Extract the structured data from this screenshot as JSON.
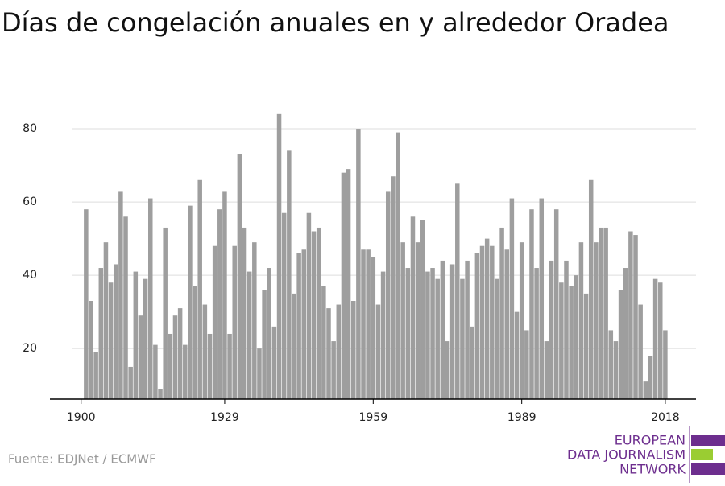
{
  "chart_data": {
    "type": "bar",
    "title": "Días de congelación anuales en y alrededor Oradea",
    "source": "Fuente: EDJNet / ECMWF",
    "logo": [
      "EUROPEAN",
      "DATA JOURNALISM",
      "NETWORK"
    ],
    "color": "#9e9e9e",
    "grid": true,
    "x": [
      1901,
      1902,
      1903,
      1904,
      1905,
      1906,
      1907,
      1908,
      1909,
      1910,
      1911,
      1912,
      1913,
      1914,
      1915,
      1916,
      1917,
      1918,
      1919,
      1920,
      1921,
      1922,
      1923,
      1924,
      1925,
      1926,
      1927,
      1928,
      1929,
      1930,
      1931,
      1932,
      1933,
      1934,
      1935,
      1936,
      1937,
      1938,
      1939,
      1940,
      1941,
      1942,
      1943,
      1944,
      1945,
      1946,
      1947,
      1948,
      1949,
      1950,
      1951,
      1952,
      1953,
      1954,
      1955,
      1956,
      1957,
      1958,
      1959,
      1960,
      1961,
      1962,
      1963,
      1964,
      1965,
      1966,
      1967,
      1968,
      1969,
      1970,
      1971,
      1972,
      1973,
      1974,
      1975,
      1976,
      1977,
      1978,
      1979,
      1980,
      1981,
      1982,
      1983,
      1984,
      1985,
      1986,
      1987,
      1988,
      1989,
      1990,
      1991,
      1992,
      1993,
      1994,
      1995,
      1996,
      1997,
      1998,
      1999,
      2000,
      2001,
      2002,
      2003,
      2004,
      2005,
      2006,
      2007,
      2008,
      2009,
      2010,
      2011,
      2012,
      2013,
      2014,
      2015,
      2016,
      2017,
      2018
    ],
    "values": [
      58,
      33,
      19,
      42,
      49,
      38,
      43,
      63,
      56,
      15,
      41,
      29,
      39,
      61,
      21,
      9,
      53,
      24,
      29,
      31,
      21,
      59,
      37,
      66,
      32,
      24,
      48,
      58,
      63,
      24,
      48,
      73,
      53,
      41,
      49,
      20,
      36,
      42,
      26,
      84,
      57,
      74,
      35,
      46,
      47,
      57,
      52,
      53,
      37,
      31,
      22,
      32,
      68,
      69,
      33,
      80,
      47,
      47,
      45,
      32,
      41,
      63,
      67,
      79,
      49,
      42,
      56,
      49,
      55,
      41,
      42,
      39,
      44,
      22,
      43,
      65,
      39,
      44,
      26,
      46,
      48,
      50,
      48,
      39,
      53,
      47,
      61,
      30,
      49,
      25,
      58,
      42,
      61,
      22,
      44,
      58,
      38,
      44,
      37,
      40,
      49,
      35,
      66,
      49,
      53,
      53,
      25,
      22,
      36,
      42,
      52,
      51,
      32,
      11,
      18,
      39,
      38,
      25
    ],
    "xlim": [
      1893.7,
      2024.2
    ],
    "xticks": [
      1900,
      1929,
      1959,
      1989,
      2018
    ],
    "ylim": [
      6.2,
      86.6
    ],
    "yticks": [
      20,
      40,
      60,
      80
    ]
  }
}
